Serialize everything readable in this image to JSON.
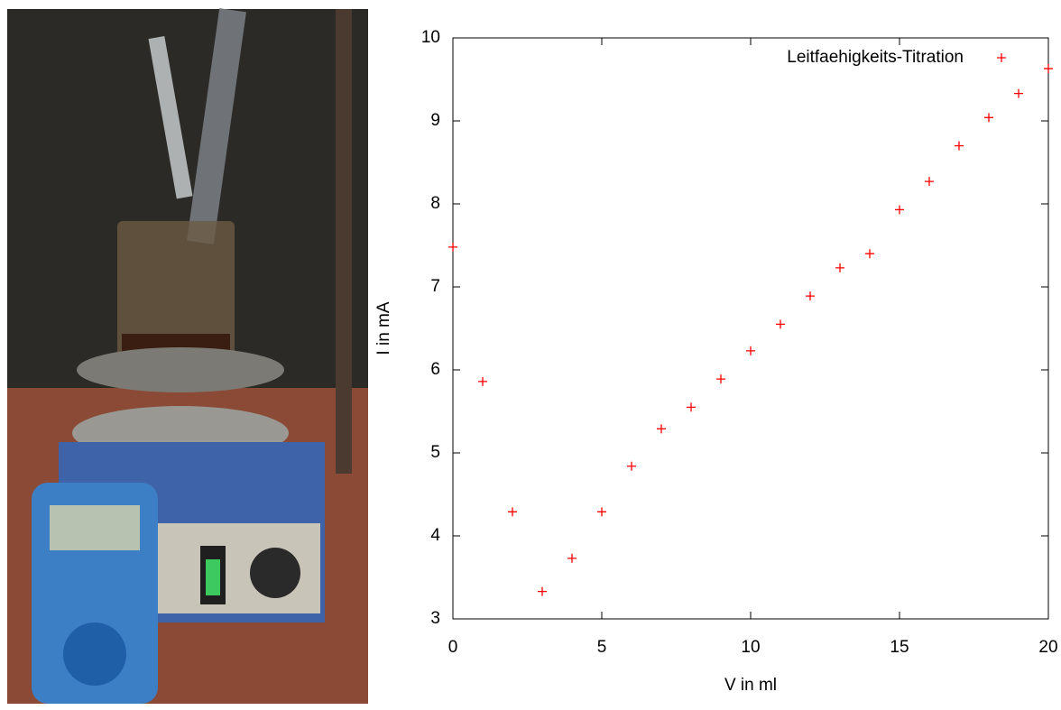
{
  "chart_data": {
    "type": "scatter",
    "xlabel": "V in ml",
    "ylabel": "I in mA",
    "series": [
      {
        "name": "Leitfaehigkeits-Titration",
        "color": "#ff0000",
        "x": [
          0,
          1,
          2,
          3,
          4,
          5,
          6,
          7,
          8,
          9,
          10,
          11,
          12,
          13,
          14,
          15,
          16,
          17,
          18,
          19,
          20
        ],
        "values": [
          7.48,
          5.86,
          4.29,
          3.33,
          3.73,
          4.29,
          4.84,
          5.29,
          5.55,
          5.89,
          6.23,
          6.55,
          6.89,
          7.23,
          7.4,
          7.93,
          8.27,
          8.7,
          9.04,
          9.33,
          9.63
        ]
      }
    ],
    "xlim": [
      0,
      20
    ],
    "xticks": [
      0,
      5,
      10,
      15,
      20
    ],
    "ylim": [
      3,
      10
    ],
    "yticks": [
      3,
      4,
      5,
      6,
      7,
      8,
      9,
      10
    ],
    "legend": "top-right"
  }
}
